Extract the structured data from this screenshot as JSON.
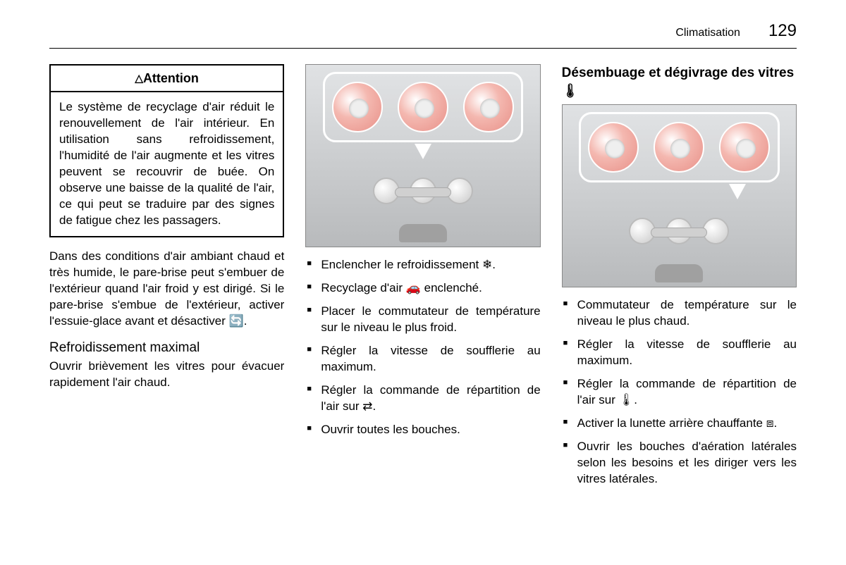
{
  "header": {
    "title": "Climatisation",
    "page": "129"
  },
  "col1": {
    "attention_label": "Attention",
    "attention_body": "Le système de recyclage d'air réduit le renouvellement de l'air intérieur. En utilisation sans refroidissement, l'humidité de l'air augmente et les vitres peuvent se recouvrir de buée. On observe une baisse de la qualité de l'air, ce qui peut se traduire par des signes de fatigue chez les passagers.",
    "para": "Dans des conditions d'air ambiant chaud et très humide, le pare-brise peut s'embuer de l'extérieur quand l'air froid y est dirigé. Si le pare-brise s'embue de l'extérieur, activer l'essuie-glace avant et désactiver 🔄.",
    "subhead": "Refroidissement maximal",
    "subtext": "Ouvrir brièvement les vitres pour évacuer rapidement l'air chaud."
  },
  "col2": {
    "bullets": [
      "Enclencher le refroidissement ❄.",
      "Recyclage d'air 🚗 enclenché.",
      "Placer le commutateur de température sur le niveau le plus froid.",
      "Régler la vitesse de soufflerie au maximum.",
      "Régler la commande de répartition de l'air sur ⇄.",
      "Ouvrir toutes les bouches."
    ]
  },
  "col3": {
    "heading": "Désembuage et dégivrage des vitres 🌡",
    "bullets": [
      "Commutateur de température sur le niveau le plus chaud.",
      "Régler la vitesse de soufflerie au maximum.",
      "Régler la commande de répartition de l'air sur 🌡.",
      "Activer la lunette arrière chauffante ⧈.",
      "Ouvrir les bouches d'aération latérales selon les besoins et les diriger vers les vitres latérales."
    ]
  }
}
